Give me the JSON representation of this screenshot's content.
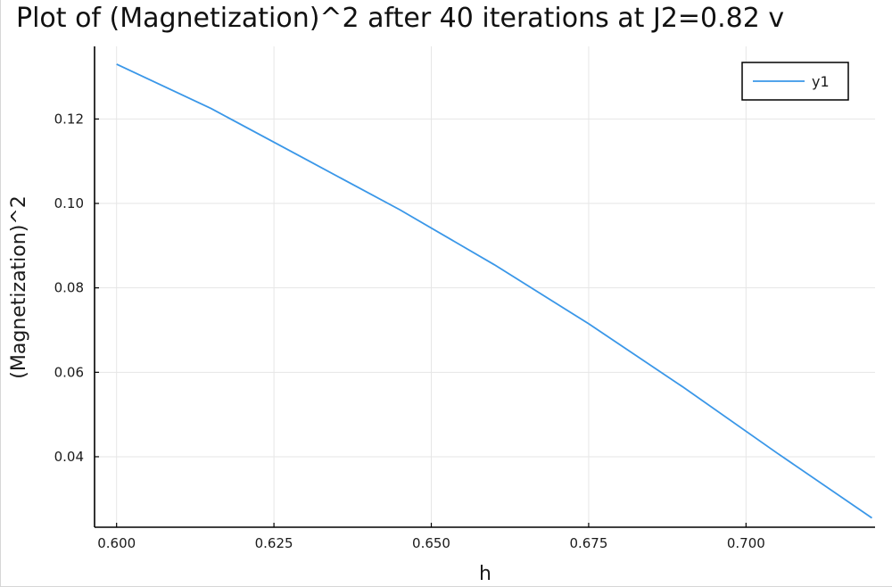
{
  "chart_data": {
    "type": "line",
    "title": "Plot of (Magnetization)^2 after 40 iterations at J2=0.82 v",
    "xlabel": "h",
    "ylabel": "(Magnetization)^2",
    "xlim": [
      0.5965,
      0.7205
    ],
    "ylim": [
      0.0233,
      0.1372
    ],
    "x_ticks": [
      0.6,
      0.625,
      0.65,
      0.675,
      0.7
    ],
    "x_tick_labels": [
      "0.600",
      "0.625",
      "0.650",
      "0.675",
      "0.700"
    ],
    "y_ticks": [
      0.04,
      0.06,
      0.08,
      0.1,
      0.12
    ],
    "y_tick_labels": [
      "0.04",
      "0.06",
      "0.08",
      "0.10",
      "0.12"
    ],
    "grid": true,
    "legend": {
      "position": "top-right"
    },
    "series": [
      {
        "name": "y1",
        "color": "#3a97e8",
        "x": [
          0.6,
          0.615,
          0.63,
          0.645,
          0.66,
          0.675,
          0.69,
          0.705,
          0.72
        ],
        "y": [
          0.133,
          0.1225,
          0.1105,
          0.0985,
          0.0855,
          0.0715,
          0.0565,
          0.0408,
          0.0255
        ]
      }
    ]
  }
}
